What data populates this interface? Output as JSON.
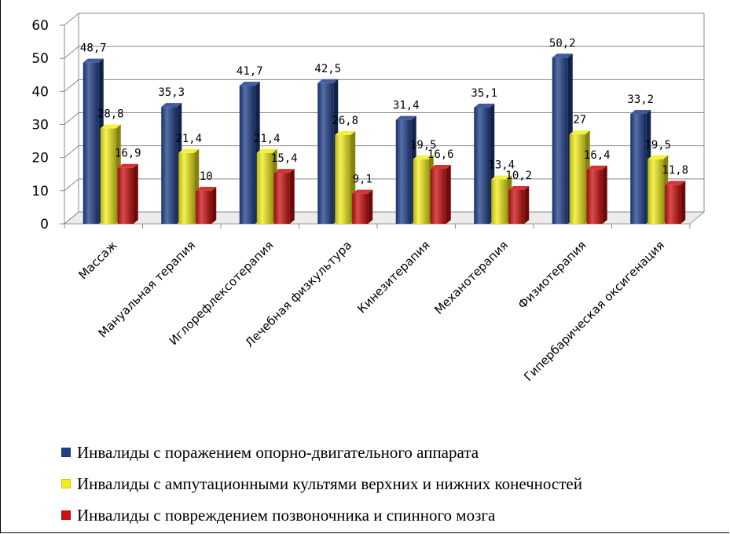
{
  "chart_data": {
    "type": "bar",
    "categories": [
      "Массаж",
      "Мануальная терапия",
      "Иглорефлексотерапия",
      "Лечебная физкультура",
      "Кинезитерапия",
      "Механотерапия",
      "Физиотерапия",
      "Гипербарическая оксигенация"
    ],
    "series": [
      {
        "name": "Инвалиды с поражением опорно-двигательного аппарата",
        "color": "#1f3f8a",
        "values": [
          48.7,
          35.3,
          41.7,
          42.5,
          31.4,
          35.1,
          50.2,
          33.2
        ],
        "labels": [
          "48,7",
          "35,3",
          "41,7",
          "42,5",
          "31,4",
          "35,1",
          "50,2",
          "33,2"
        ]
      },
      {
        "name": "Инвалиды с ампутационными культями верхних и нижних конечностей",
        "color": "#f2ee1a",
        "values": [
          28.8,
          21.4,
          21.4,
          26.8,
          19.5,
          13.4,
          27,
          19.5
        ],
        "labels": [
          "28,8",
          "21,4",
          "21,4",
          "26,8",
          "19,5",
          "13,4",
          "27",
          "19,5"
        ]
      },
      {
        "name": "Инвалиды с повреждением позвоночника и спинного мозга",
        "color": "#cc1010",
        "values": [
          16.9,
          10,
          15.4,
          9.1,
          16.6,
          10.2,
          16.4,
          11.8
        ],
        "labels": [
          "16,9",
          "10",
          "15,4",
          "9,1",
          "16,6",
          "10,2",
          "16,4",
          "11,8"
        ]
      }
    ],
    "y_ticks": [
      "0",
      "10",
      "20",
      "30",
      "40",
      "50",
      "60"
    ],
    "ylim": [
      0,
      60
    ],
    "grid": true,
    "legend_position": "bottom"
  }
}
